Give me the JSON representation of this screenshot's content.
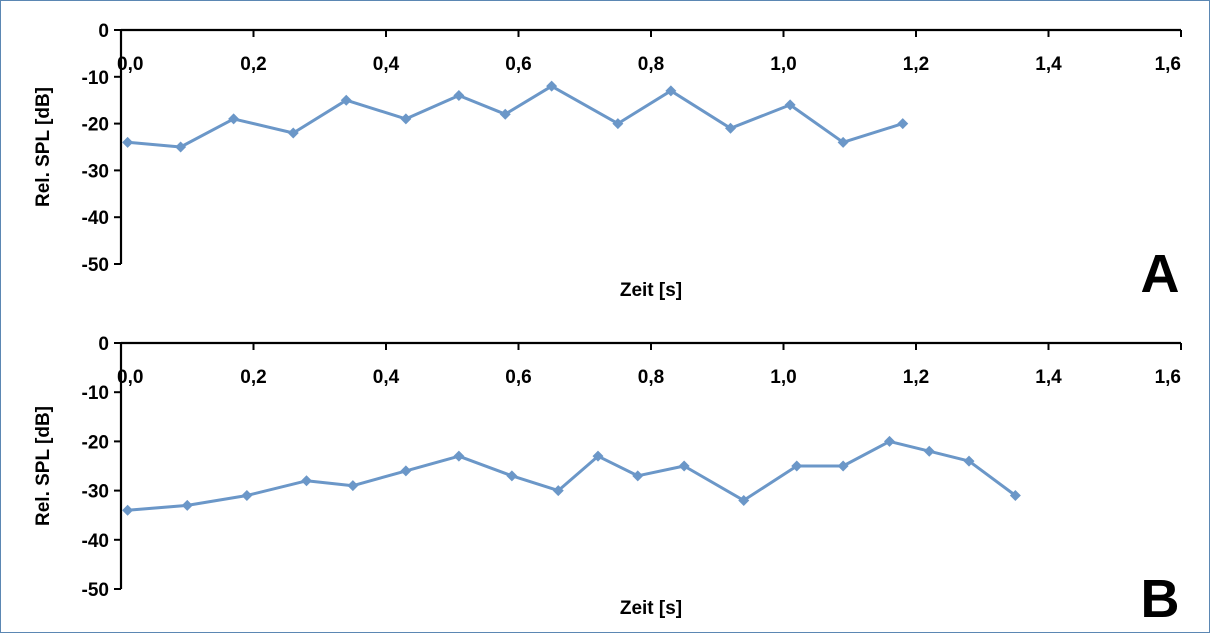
{
  "chart_data": [
    {
      "type": "line",
      "panel_label": "A",
      "xlabel": "Zeit [s]",
      "ylabel": "Rel. SPL [dB]",
      "xlim": [
        0,
        1.6
      ],
      "ylim": [
        -50,
        0
      ],
      "x_ticks": [
        "0,0",
        "0,2",
        "0,4",
        "0,6",
        "0,8",
        "1,0",
        "1,2",
        "1,4",
        "1,6"
      ],
      "y_ticks": [
        "0",
        "-10",
        "-20",
        "-30",
        "-40",
        "-50"
      ],
      "grid": false,
      "color": "#6b97c8",
      "series": [
        {
          "x": [
            0.01,
            0.09,
            0.17,
            0.26,
            0.34,
            0.43,
            0.51,
            0.58,
            0.65,
            0.75,
            0.83,
            0.92,
            1.01,
            1.09,
            1.18
          ],
          "y": [
            -24,
            -25,
            -19,
            -22,
            -15,
            -19,
            -14,
            -18,
            -12,
            -20,
            -13,
            -21,
            -16,
            -24,
            -20
          ]
        }
      ]
    },
    {
      "type": "line",
      "panel_label": "B",
      "xlabel": "Zeit [s]",
      "ylabel": "Rel. SPL [dB]",
      "xlim": [
        0,
        1.6
      ],
      "ylim": [
        -50,
        0
      ],
      "x_ticks": [
        "0,0",
        "0,2",
        "0,4",
        "0,6",
        "0,8",
        "1,0",
        "1,2",
        "1,4",
        "1,6"
      ],
      "y_ticks": [
        "0",
        "-10",
        "-20",
        "-30",
        "-40",
        "-50"
      ],
      "grid": false,
      "color": "#6b97c8",
      "series": [
        {
          "x": [
            0.01,
            0.1,
            0.19,
            0.28,
            0.35,
            0.43,
            0.51,
            0.59,
            0.66,
            0.72,
            0.78,
            0.85,
            0.94,
            1.02,
            1.09,
            1.16,
            1.22,
            1.28,
            1.35
          ],
          "y": [
            -34,
            -33,
            -31,
            -28,
            -29,
            -26,
            -23,
            -27,
            -30,
            -23,
            -27,
            -25,
            -32,
            -25,
            -25,
            -20,
            -22,
            -24,
            -31
          ]
        }
      ]
    }
  ]
}
